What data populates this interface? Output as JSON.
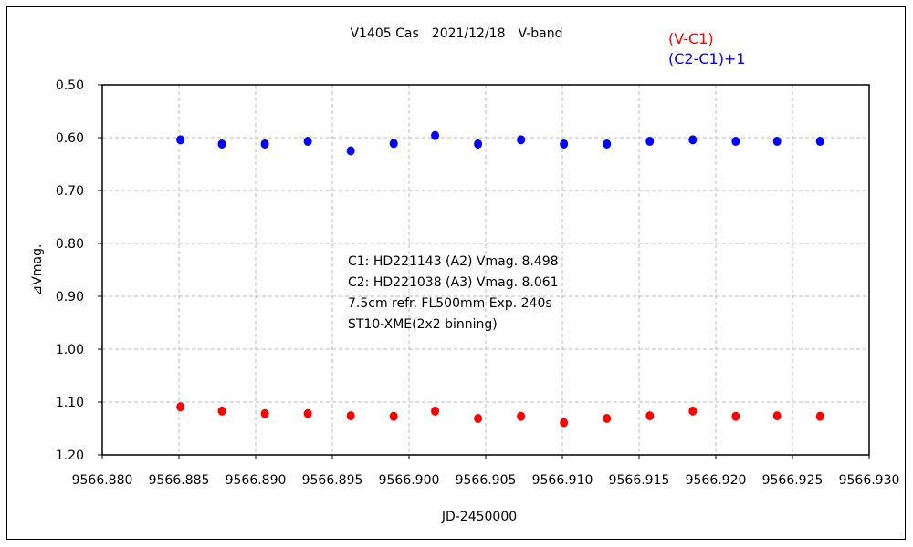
{
  "chart_data": {
    "type": "scatter",
    "title": "V1405 Cas　2021/12/18　V-band",
    "xlabel": "JD-2450000",
    "ylabel": "⊿Vmag.",
    "xlim": [
      9566.88,
      9566.93
    ],
    "ylim": [
      0.5,
      1.2
    ],
    "y_inverted": true,
    "grid": true,
    "legend_position": "top-right",
    "x_ticks": [
      "9566.880",
      "9566.885",
      "9566.890",
      "9566.895",
      "9566.900",
      "9566.905",
      "9566.910",
      "9566.915",
      "9566.920",
      "9566.925",
      "9566.930"
    ],
    "y_ticks": [
      "0.50",
      "0.60",
      "0.70",
      "0.80",
      "0.90",
      "1.00",
      "1.10",
      "1.20"
    ],
    "x": [
      9566.8851,
      9566.8878,
      9566.8906,
      9566.8934,
      9566.8962,
      9566.899,
      9566.9017,
      9566.9045,
      9566.9073,
      9566.9101,
      9566.9129,
      9566.9157,
      9566.9185,
      9566.9213,
      9566.924,
      9566.9268
    ],
    "series": [
      {
        "name": "(V-C1)",
        "color": "#ff0000",
        "values": [
          1.109,
          1.117,
          1.122,
          1.122,
          1.126,
          1.127,
          1.117,
          1.131,
          1.127,
          1.139,
          1.131,
          1.126,
          1.117,
          1.127,
          1.126,
          1.127
        ]
      },
      {
        "name": "(C2-C1)+1",
        "color": "#0000ff",
        "values": [
          0.604,
          0.612,
          0.612,
          0.607,
          0.625,
          0.611,
          0.596,
          0.612,
          0.604,
          0.612,
          0.612,
          0.607,
          0.604,
          0.607,
          0.607,
          0.607
        ]
      }
    ],
    "annotations": [
      "C1: HD221143 (A2) Vmag. 8.498",
      "C2: HD221038 (A3) Vmag. 8.061",
      "7.5cm refr. FL500mm Exp. 240s",
      "ST10-XME(2x2 binning)"
    ]
  }
}
